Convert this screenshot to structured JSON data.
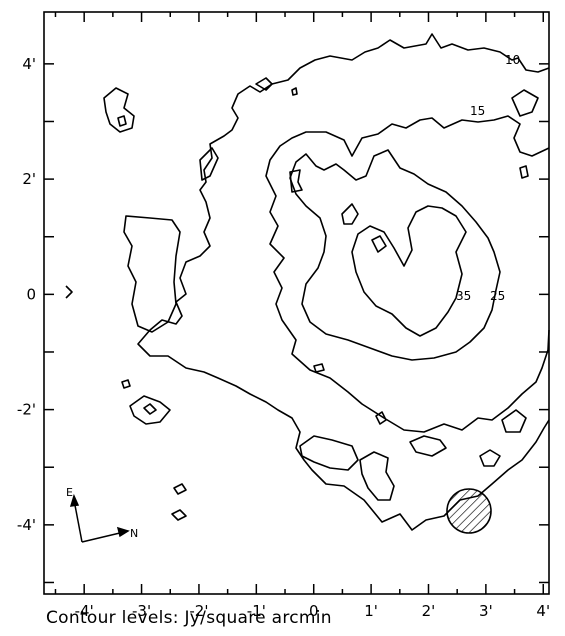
{
  "chart_data": {
    "type": "contour",
    "x_ticks": [
      "-4'",
      "-3'",
      "-2'",
      "-1'",
      "0",
      "1'",
      "2'",
      "3'",
      "4'"
    ],
    "x_values": [
      -4,
      -3,
      -2,
      -1,
      0,
      1,
      2,
      3,
      4
    ],
    "y_ticks": [
      "4'",
      "2'",
      "0",
      "-2'",
      "-4'"
    ],
    "y_values": [
      4,
      2,
      0,
      -2,
      -4
    ],
    "xlim": [
      -4.7,
      4.1
    ],
    "ylim": [
      -5.2,
      4.9
    ],
    "contour_levels": [
      {
        "value": 10,
        "label": "10"
      },
      {
        "value": 15,
        "label": "15"
      },
      {
        "value": 25,
        "label": "25"
      },
      {
        "value": 35,
        "label": "35"
      }
    ],
    "compass": {
      "up": "E",
      "right": "N"
    },
    "beam": {
      "x": 2.6,
      "y": -4.2,
      "radius": 0.38
    },
    "caption": "Contour levels: Jy/square arcmin"
  }
}
